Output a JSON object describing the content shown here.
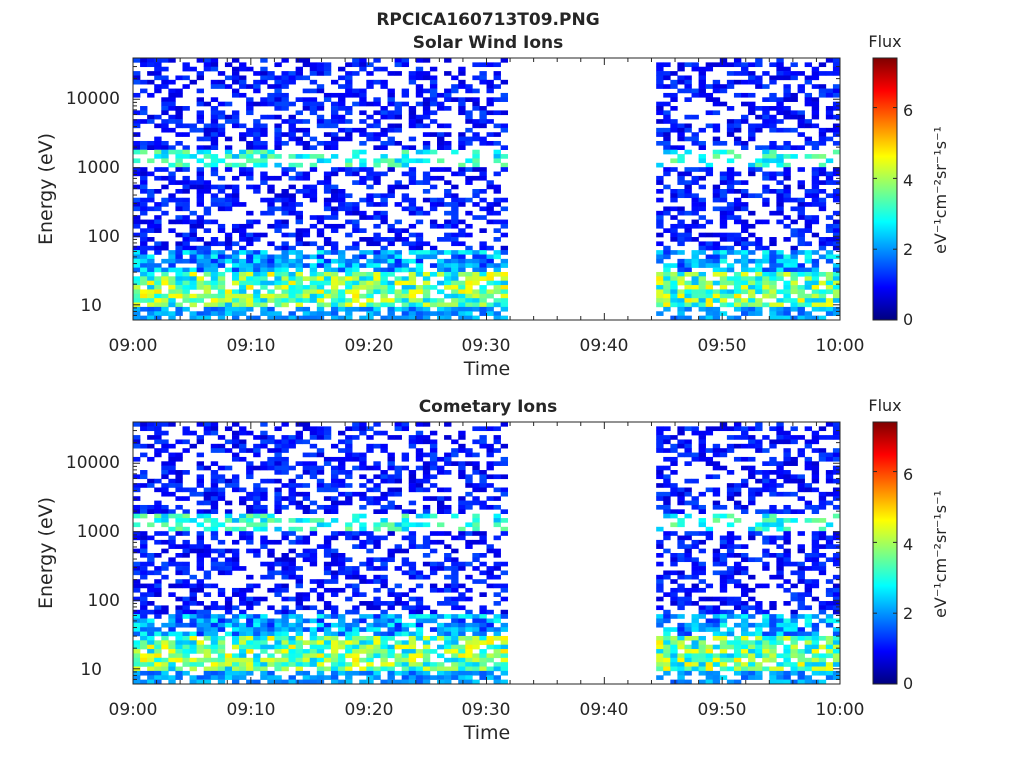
{
  "figure": {
    "title": "RPCICA160713T09.PNG"
  },
  "chart_data": [
    {
      "type": "heatmap",
      "title": "Solar Wind Ions",
      "xlabel": "Time",
      "ylabel": "Energy (eV)",
      "y_scale": "log",
      "ylim": [
        6,
        40000
      ],
      "xlim": [
        "09:00",
        "10:00"
      ],
      "x_ticks": [
        "09:00",
        "09:10",
        "09:20",
        "09:30",
        "09:40",
        "09:50",
        "10:00"
      ],
      "y_ticks": [
        "10",
        "100",
        "1000",
        "10000"
      ],
      "data_gap": [
        "09:32",
        "09:44"
      ],
      "colorbar": {
        "label": "Flux",
        "units_label": "eV⁻¹cm⁻²sr⁻¹s⁻¹",
        "range": [
          0,
          7.4
        ],
        "ticks": [
          "0",
          "2",
          "4",
          "6"
        ],
        "colormap": "jet"
      },
      "seed": 7
    },
    {
      "type": "heatmap",
      "title": "Cometary Ions",
      "xlabel": "Time",
      "ylabel": "Energy (eV)",
      "y_scale": "log",
      "ylim": [
        6,
        40000
      ],
      "xlim": [
        "09:00",
        "10:00"
      ],
      "x_ticks": [
        "09:00",
        "09:10",
        "09:20",
        "09:30",
        "09:40",
        "09:50",
        "10:00"
      ],
      "y_ticks": [
        "10",
        "100",
        "1000",
        "10000"
      ],
      "data_gap": [
        "09:32",
        "09:44"
      ],
      "colorbar": {
        "label": "Flux",
        "units_label": "eV⁻¹cm⁻²sr⁻¹s⁻¹",
        "range": [
          0,
          7.4
        ],
        "ticks": [
          "0",
          "2",
          "4",
          "6"
        ],
        "colormap": "jet"
      },
      "seed": 7
    }
  ]
}
